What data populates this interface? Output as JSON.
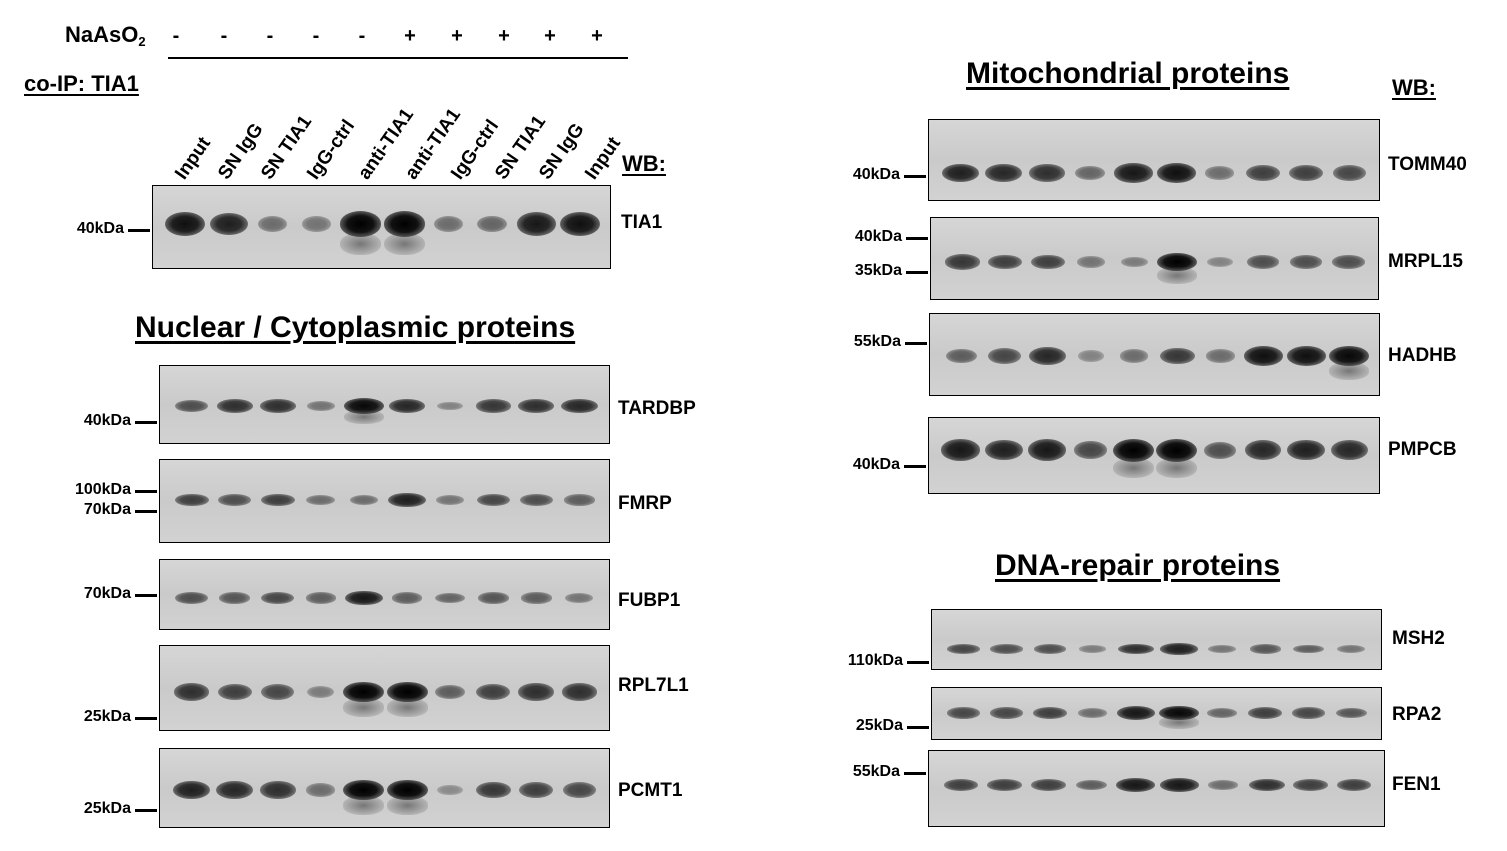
{
  "treatment": {
    "label": "NaAsO",
    "label_sub": "2",
    "signs": [
      "-",
      "-",
      "-",
      "-",
      "-",
      "+",
      "+",
      "+",
      "+",
      "+"
    ]
  },
  "coip_label": "co-IP: TIA1",
  "wb_label": "WB:",
  "lanes": [
    "Input",
    "SN IgG",
    "SN TIA1",
    "IgG-ctrl",
    "anti-TIA1",
    "anti-TIA1",
    "IgG-ctrl",
    "SN TIA1",
    "SN IgG",
    "Input"
  ],
  "sections": {
    "nuclear": "Nuclear / Cytoplasmic proteins",
    "mitochondrial": "Mitochondrial proteins",
    "dna_repair": "DNA-repair proteins"
  },
  "blots": {
    "tia1": {
      "protein": "TIA1",
      "markers": [
        "40kDa"
      ]
    },
    "tardbp": {
      "protein": "TARDBP",
      "markers": [
        "40kDa"
      ]
    },
    "fmrp": {
      "protein": "FMRP",
      "markers": [
        "100kDa",
        "70kDa"
      ]
    },
    "fubp1": {
      "protein": "FUBP1",
      "markers": [
        "70kDa"
      ]
    },
    "rpl7l1": {
      "protein": "RPL7L1",
      "markers": [
        "25kDa"
      ]
    },
    "pcmt1": {
      "protein": "PCMT1",
      "markers": [
        "25kDa"
      ]
    },
    "tomm40": {
      "protein": "TOMM40",
      "markers": [
        "40kDa"
      ]
    },
    "mrpl15": {
      "protein": "MRPL15",
      "markers": [
        "40kDa",
        "35kDa"
      ]
    },
    "hadhb": {
      "protein": "HADHB",
      "markers": [
        "55kDa"
      ]
    },
    "pmpcb": {
      "protein": "PMPCB",
      "markers": [
        "40kDa"
      ]
    },
    "msh2": {
      "protein": "MSH2",
      "markers": [
        "110kDa"
      ]
    },
    "rpa2": {
      "protein": "RPA2",
      "markers": [
        "25kDa"
      ]
    },
    "fen1": {
      "protein": "FEN1",
      "markers": [
        "55kDa"
      ]
    }
  },
  "band_intensities": {
    "tia1": [
      0.9,
      0.8,
      0.3,
      0.25,
      1.0,
      1.0,
      0.3,
      0.35,
      0.85,
      0.9
    ],
    "tardbp": [
      0.5,
      0.7,
      0.7,
      0.25,
      0.95,
      0.75,
      0.15,
      0.65,
      0.7,
      0.75
    ],
    "fmrp": [
      0.6,
      0.5,
      0.6,
      0.3,
      0.3,
      0.8,
      0.25,
      0.55,
      0.5,
      0.4
    ],
    "fubp1": [
      0.5,
      0.45,
      0.55,
      0.4,
      0.85,
      0.4,
      0.35,
      0.45,
      0.4,
      0.25
    ],
    "rpl7l1": [
      0.7,
      0.6,
      0.55,
      0.2,
      1.0,
      1.0,
      0.4,
      0.6,
      0.7,
      0.7
    ],
    "pcmt1": [
      0.8,
      0.75,
      0.7,
      0.3,
      1.0,
      1.0,
      0.1,
      0.65,
      0.6,
      0.55
    ],
    "tomm40": [
      0.8,
      0.75,
      0.7,
      0.35,
      0.85,
      0.9,
      0.3,
      0.6,
      0.6,
      0.55
    ],
    "mrpl15": [
      0.65,
      0.6,
      0.6,
      0.25,
      0.2,
      1.0,
      0.15,
      0.5,
      0.5,
      0.5
    ],
    "hadhb": [
      0.4,
      0.55,
      0.75,
      0.15,
      0.3,
      0.65,
      0.3,
      0.9,
      0.9,
      0.95
    ],
    "pmpcb": [
      0.85,
      0.8,
      0.85,
      0.55,
      1.0,
      1.0,
      0.5,
      0.75,
      0.8,
      0.75
    ],
    "msh2": [
      0.55,
      0.5,
      0.5,
      0.2,
      0.7,
      0.8,
      0.25,
      0.45,
      0.4,
      0.25
    ],
    "rpa2": [
      0.55,
      0.55,
      0.6,
      0.3,
      0.85,
      0.95,
      0.35,
      0.6,
      0.55,
      0.45
    ],
    "fen1": [
      0.6,
      0.6,
      0.6,
      0.4,
      0.85,
      0.85,
      0.3,
      0.7,
      0.6,
      0.6
    ]
  }
}
